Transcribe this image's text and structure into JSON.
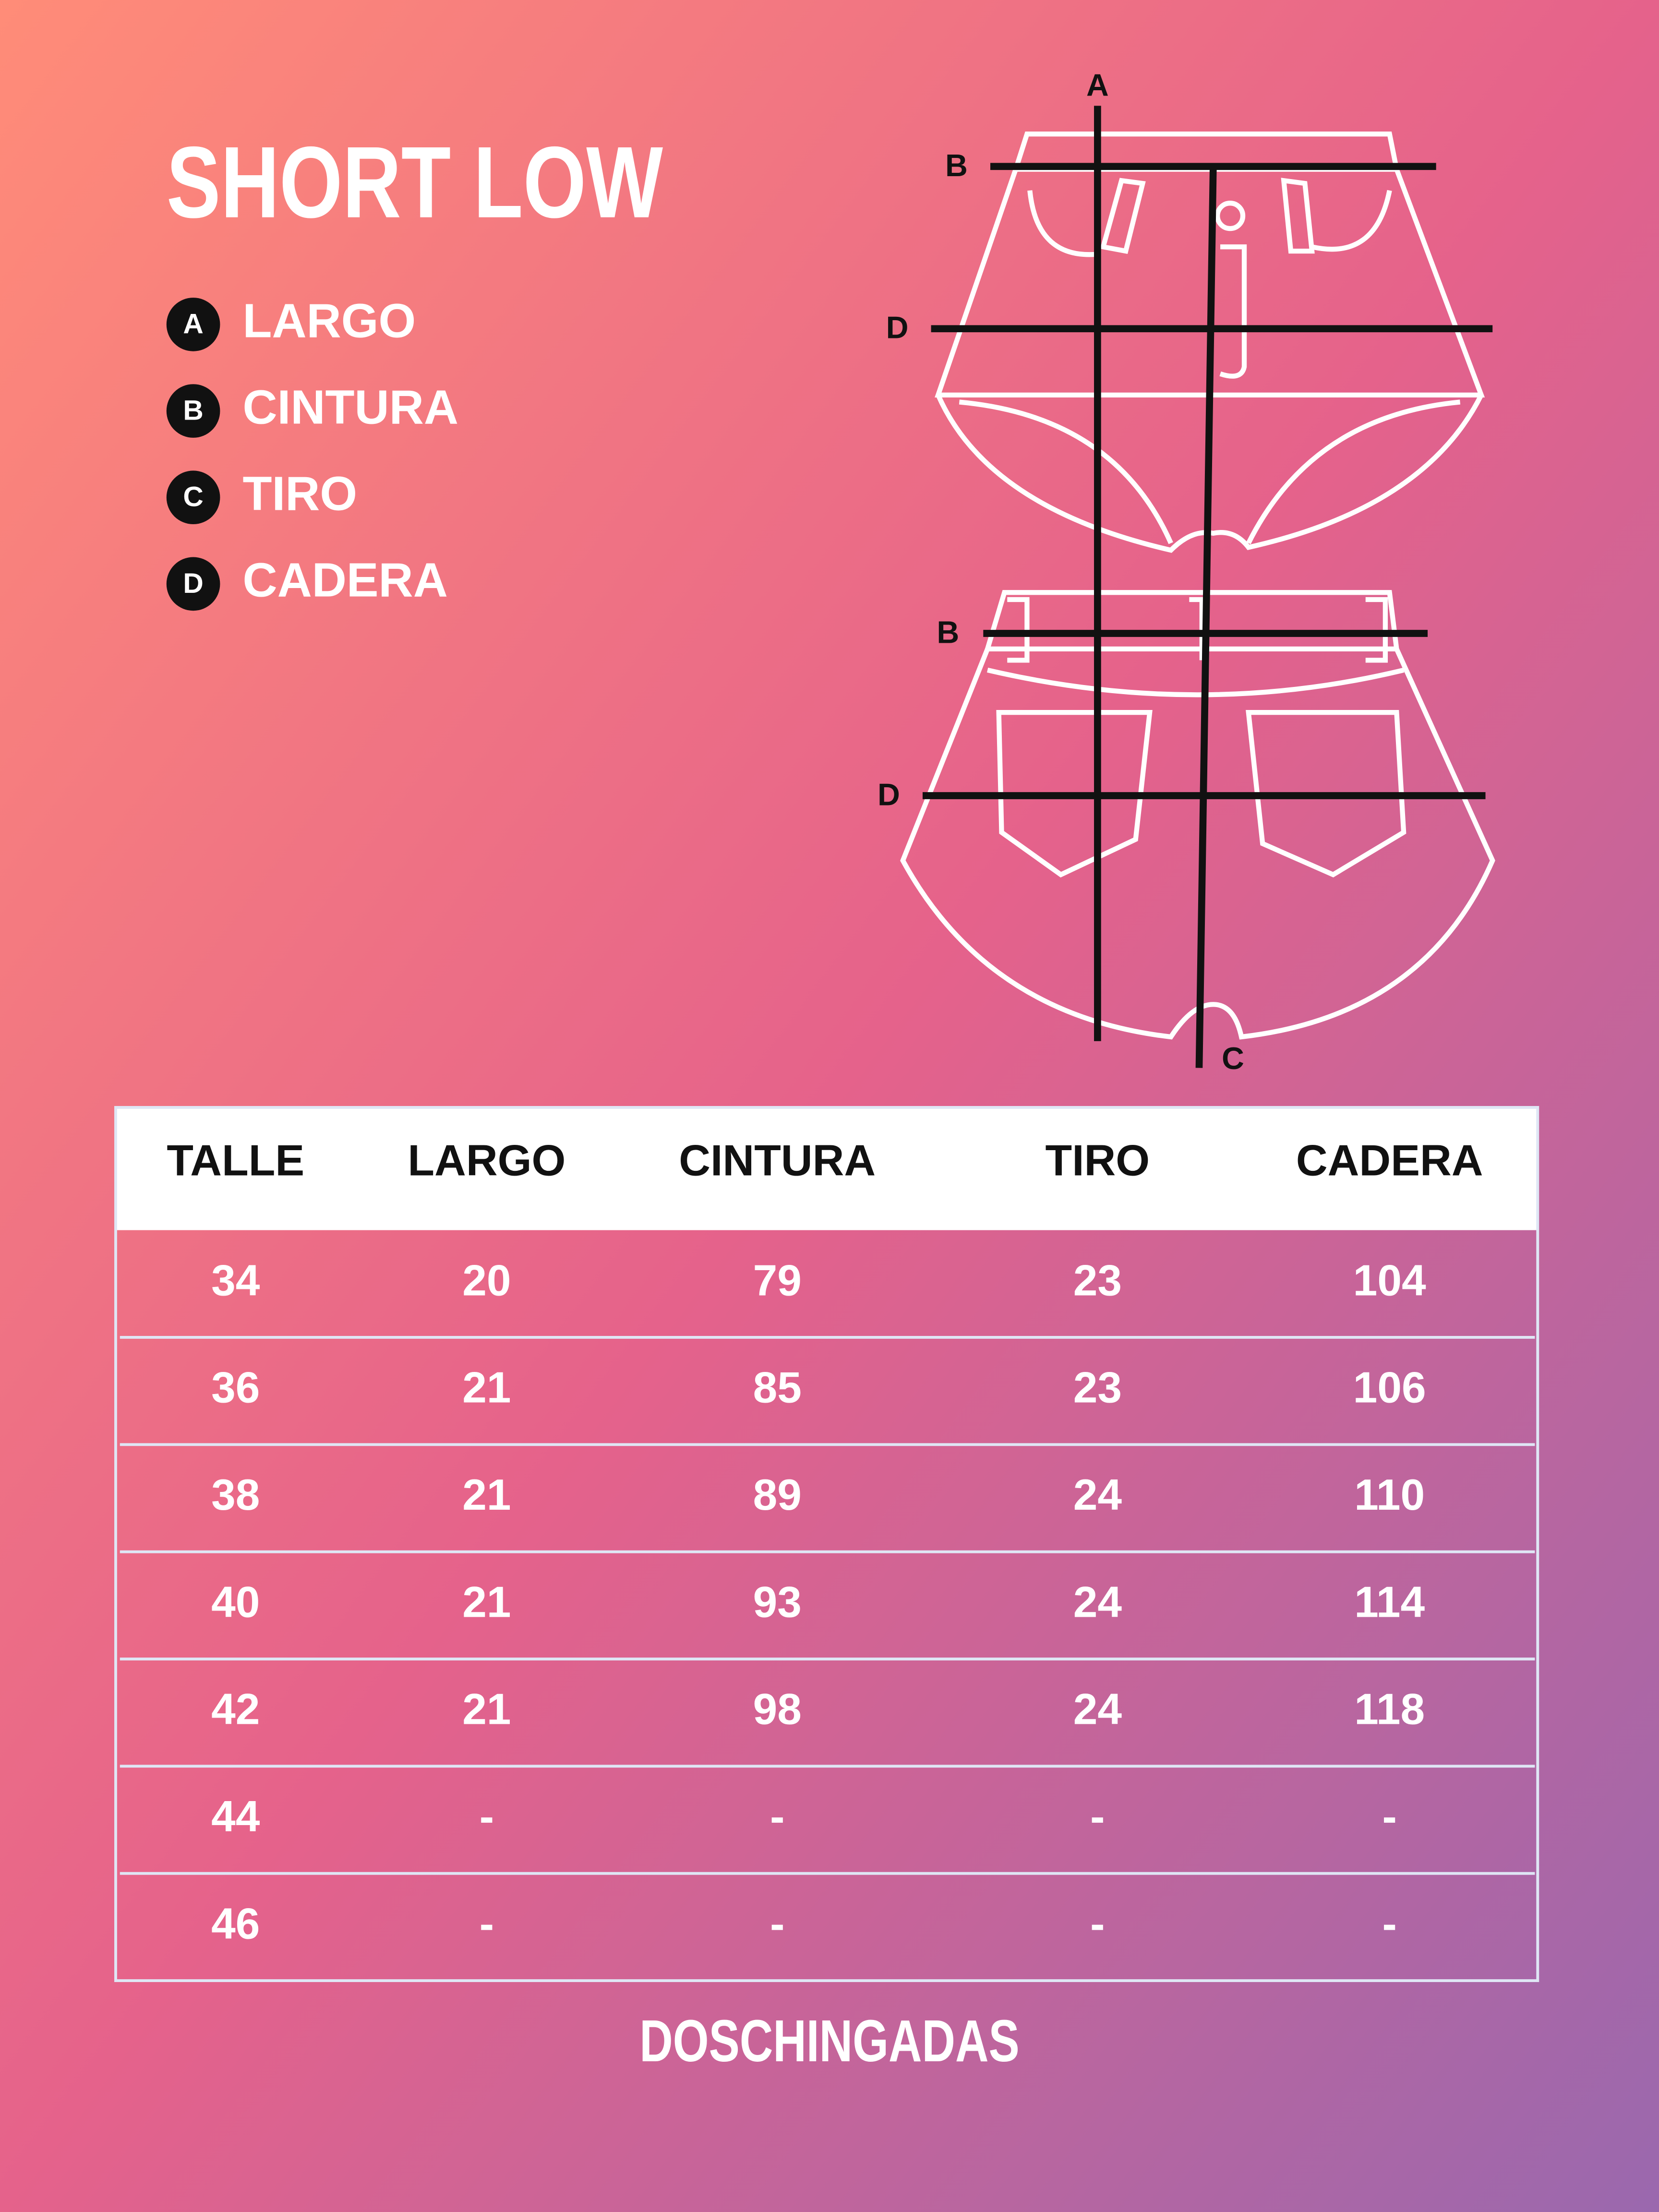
{
  "header": {
    "title": "SHORT LOW"
  },
  "legend": [
    {
      "letter": "A",
      "label": "LARGO"
    },
    {
      "letter": "B",
      "label": "CINTURA"
    },
    {
      "letter": "C",
      "label": "TIRO"
    },
    {
      "letter": "D",
      "label": "CADERA"
    }
  ],
  "diagram": {
    "labels": [
      "A",
      "B",
      "D",
      "B",
      "D",
      "C"
    ]
  },
  "table": {
    "header": [
      "TALLE",
      "LARGO",
      "CINTURA",
      "TIRO",
      "CADERA"
    ],
    "rows": [
      [
        34,
        20,
        79,
        23,
        104
      ],
      [
        36,
        21,
        85,
        23,
        106
      ],
      [
        38,
        21,
        89,
        24,
        110
      ],
      [
        40,
        21,
        93,
        24,
        114
      ],
      [
        42,
        21,
        98,
        24,
        118
      ],
      [
        44,
        "-",
        "-",
        "-",
        "-"
      ],
      [
        46,
        "-",
        "-",
        "-",
        "-"
      ]
    ]
  },
  "footer": {
    "brand": "DOSCHINGADAS"
  }
}
